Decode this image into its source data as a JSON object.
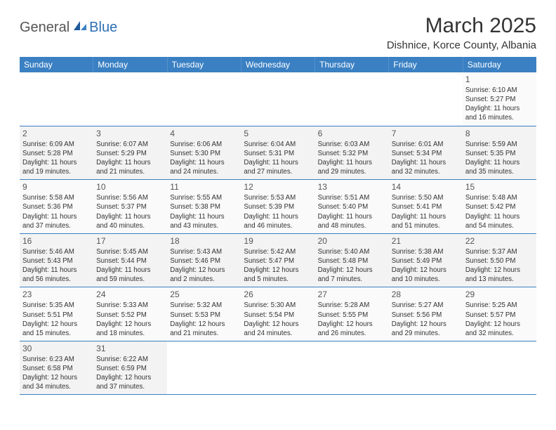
{
  "logo": {
    "general": "General",
    "blue": "Blue"
  },
  "title": "March 2025",
  "location": "Dishnice, Korce County, Albania",
  "colors": {
    "header_bg": "#3a80c3",
    "header_text": "#ffffff",
    "accent": "#2d6fb5",
    "body_text": "#333333",
    "cell_bg": "#fafafa",
    "cell_bg_alt": "#f3f3f3",
    "border": "#3a80c3"
  },
  "weekdays": [
    "Sunday",
    "Monday",
    "Tuesday",
    "Wednesday",
    "Thursday",
    "Friday",
    "Saturday"
  ],
  "weeks": [
    [
      null,
      null,
      null,
      null,
      null,
      null,
      {
        "n": "1",
        "sr": "6:10 AM",
        "ss": "5:27 PM",
        "dl": "11 hours and 16 minutes."
      }
    ],
    [
      {
        "n": "2",
        "sr": "6:09 AM",
        "ss": "5:28 PM",
        "dl": "11 hours and 19 minutes."
      },
      {
        "n": "3",
        "sr": "6:07 AM",
        "ss": "5:29 PM",
        "dl": "11 hours and 21 minutes."
      },
      {
        "n": "4",
        "sr": "6:06 AM",
        "ss": "5:30 PM",
        "dl": "11 hours and 24 minutes."
      },
      {
        "n": "5",
        "sr": "6:04 AM",
        "ss": "5:31 PM",
        "dl": "11 hours and 27 minutes."
      },
      {
        "n": "6",
        "sr": "6:03 AM",
        "ss": "5:32 PM",
        "dl": "11 hours and 29 minutes."
      },
      {
        "n": "7",
        "sr": "6:01 AM",
        "ss": "5:34 PM",
        "dl": "11 hours and 32 minutes."
      },
      {
        "n": "8",
        "sr": "5:59 AM",
        "ss": "5:35 PM",
        "dl": "11 hours and 35 minutes."
      }
    ],
    [
      {
        "n": "9",
        "sr": "5:58 AM",
        "ss": "5:36 PM",
        "dl": "11 hours and 37 minutes."
      },
      {
        "n": "10",
        "sr": "5:56 AM",
        "ss": "5:37 PM",
        "dl": "11 hours and 40 minutes."
      },
      {
        "n": "11",
        "sr": "5:55 AM",
        "ss": "5:38 PM",
        "dl": "11 hours and 43 minutes."
      },
      {
        "n": "12",
        "sr": "5:53 AM",
        "ss": "5:39 PM",
        "dl": "11 hours and 46 minutes."
      },
      {
        "n": "13",
        "sr": "5:51 AM",
        "ss": "5:40 PM",
        "dl": "11 hours and 48 minutes."
      },
      {
        "n": "14",
        "sr": "5:50 AM",
        "ss": "5:41 PM",
        "dl": "11 hours and 51 minutes."
      },
      {
        "n": "15",
        "sr": "5:48 AM",
        "ss": "5:42 PM",
        "dl": "11 hours and 54 minutes."
      }
    ],
    [
      {
        "n": "16",
        "sr": "5:46 AM",
        "ss": "5:43 PM",
        "dl": "11 hours and 56 minutes."
      },
      {
        "n": "17",
        "sr": "5:45 AM",
        "ss": "5:44 PM",
        "dl": "11 hours and 59 minutes."
      },
      {
        "n": "18",
        "sr": "5:43 AM",
        "ss": "5:46 PM",
        "dl": "12 hours and 2 minutes."
      },
      {
        "n": "19",
        "sr": "5:42 AM",
        "ss": "5:47 PM",
        "dl": "12 hours and 5 minutes."
      },
      {
        "n": "20",
        "sr": "5:40 AM",
        "ss": "5:48 PM",
        "dl": "12 hours and 7 minutes."
      },
      {
        "n": "21",
        "sr": "5:38 AM",
        "ss": "5:49 PM",
        "dl": "12 hours and 10 minutes."
      },
      {
        "n": "22",
        "sr": "5:37 AM",
        "ss": "5:50 PM",
        "dl": "12 hours and 13 minutes."
      }
    ],
    [
      {
        "n": "23",
        "sr": "5:35 AM",
        "ss": "5:51 PM",
        "dl": "12 hours and 15 minutes."
      },
      {
        "n": "24",
        "sr": "5:33 AM",
        "ss": "5:52 PM",
        "dl": "12 hours and 18 minutes."
      },
      {
        "n": "25",
        "sr": "5:32 AM",
        "ss": "5:53 PM",
        "dl": "12 hours and 21 minutes."
      },
      {
        "n": "26",
        "sr": "5:30 AM",
        "ss": "5:54 PM",
        "dl": "12 hours and 24 minutes."
      },
      {
        "n": "27",
        "sr": "5:28 AM",
        "ss": "5:55 PM",
        "dl": "12 hours and 26 minutes."
      },
      {
        "n": "28",
        "sr": "5:27 AM",
        "ss": "5:56 PM",
        "dl": "12 hours and 29 minutes."
      },
      {
        "n": "29",
        "sr": "5:25 AM",
        "ss": "5:57 PM",
        "dl": "12 hours and 32 minutes."
      }
    ],
    [
      {
        "n": "30",
        "sr": "6:23 AM",
        "ss": "6:58 PM",
        "dl": "12 hours and 34 minutes."
      },
      {
        "n": "31",
        "sr": "6:22 AM",
        "ss": "6:59 PM",
        "dl": "12 hours and 37 minutes."
      },
      null,
      null,
      null,
      null,
      null
    ]
  ],
  "labels": {
    "sunrise": "Sunrise:",
    "sunset": "Sunset:",
    "daylight": "Daylight:"
  }
}
